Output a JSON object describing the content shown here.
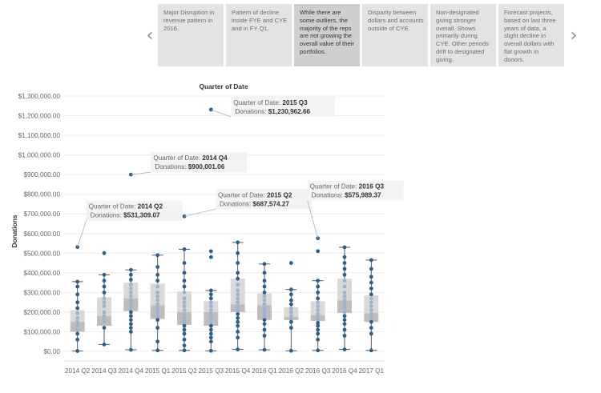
{
  "story": {
    "points": [
      {
        "text": "Major Disruption in revenue pattern in 2016.",
        "active": false
      },
      {
        "text": "Pattern of decline inside FYE and CYE and in FY Q1.",
        "active": false
      },
      {
        "text": "While there are some outliers, the majority of the reps are not growing the overall value of their portfolios.",
        "active": true
      },
      {
        "text": "Disparity between dollars and accounts outside of CYE.",
        "active": false
      },
      {
        "text": "Non-designated giving stronger overall. Shows primarily during CYE. Other periods drift to designated giving.",
        "active": false
      },
      {
        "text": "Forecast projects, based on last three years of data, a slight decline in overall dollars with flat growth in donors.",
        "active": false
      }
    ],
    "prev_icon": "chevron-left-icon",
    "next_icon": "chevron-right-icon"
  },
  "chart_data": {
    "type": "boxplot",
    "title": "Quarter of Date",
    "ylabel": "Donations",
    "ylim": [
      0,
      1300000
    ],
    "yticks": [
      "$0.00",
      "$100,000.00",
      "$200,000.00",
      "$300,000.00",
      "$400,000.00",
      "$500,000.00",
      "$600,000.00",
      "$700,000.00",
      "$800,000.00",
      "$900,000.00",
      "$1,000,000.00",
      "$1,100,000.00",
      "$1,200,000.00",
      "$1,300,000.00"
    ],
    "categories": [
      "2014 Q2",
      "2014 Q3",
      "2014 Q4",
      "2015 Q1",
      "2015 Q2",
      "2015 Q3",
      "2015 Q4",
      "2016 Q1",
      "2016 Q2",
      "2016 Q3",
      "2016 Q4",
      "2017 Q1"
    ],
    "boxes": [
      {
        "min": 2000,
        "q1": 100000,
        "median": 150000,
        "q3": 210000,
        "max": 355000
      },
      {
        "min": 35000,
        "q1": 130000,
        "median": 180000,
        "q3": 275000,
        "max": 390000
      },
      {
        "min": 8000,
        "q1": 205000,
        "median": 270000,
        "q3": 350000,
        "max": 415000
      },
      {
        "min": 5000,
        "q1": 165000,
        "median": 235000,
        "q3": 345000,
        "max": 490000
      },
      {
        "min": 5000,
        "q1": 135000,
        "median": 200000,
        "q3": 305000,
        "max": 520000
      },
      {
        "min": 3000,
        "q1": 130000,
        "median": 200000,
        "q3": 255000,
        "max": 310000
      },
      {
        "min": 10000,
        "q1": 200000,
        "median": 240000,
        "q3": 370000,
        "max": 555000
      },
      {
        "min": 8000,
        "q1": 160000,
        "median": 235000,
        "q3": 295000,
        "max": 445000
      },
      {
        "min": 3000,
        "q1": 160000,
        "median": 175000,
        "q3": 225000,
        "max": 315000
      },
      {
        "min": 5000,
        "q1": 155000,
        "median": 185000,
        "q3": 255000,
        "max": 360000
      },
      {
        "min": 10000,
        "q1": 195000,
        "median": 260000,
        "q3": 370000,
        "max": 530000
      },
      {
        "min": 5000,
        "q1": 150000,
        "median": 195000,
        "q3": 285000,
        "max": 465000
      }
    ],
    "points": [
      [
        531309.07,
        355000,
        330000,
        290000,
        250000,
        220000,
        195000,
        170000,
        150000,
        130000,
        110000,
        90000,
        60000,
        2000
      ],
      [
        500000,
        390000,
        360000,
        330000,
        300000,
        270000,
        250000,
        230000,
        200000,
        180000,
        165000,
        150000,
        120000,
        35000
      ],
      [
        900001.06,
        415000,
        390000,
        365000,
        340000,
        320000,
        300000,
        280000,
        260000,
        240000,
        220000,
        200000,
        180000,
        160000,
        140000,
        120000,
        100000,
        8000
      ],
      [
        490000,
        430000,
        390000,
        360000,
        330000,
        300000,
        280000,
        260000,
        240000,
        220000,
        200000,
        180000,
        160000,
        120000,
        50000,
        5000
      ],
      [
        687574.27,
        520000,
        450000,
        400000,
        360000,
        330000,
        300000,
        270000,
        250000,
        230000,
        210000,
        190000,
        170000,
        150000,
        130000,
        110000,
        90000,
        60000,
        30000,
        5000
      ],
      [
        1230962.66,
        510000,
        480000,
        310000,
        290000,
        270000,
        250000,
        230000,
        210000,
        190000,
        170000,
        150000,
        130000,
        110000,
        90000,
        70000,
        50000,
        3000
      ],
      [
        555000,
        500000,
        450000,
        400000,
        370000,
        340000,
        310000,
        290000,
        270000,
        250000,
        230000,
        210000,
        190000,
        170000,
        150000,
        130000,
        100000,
        70000,
        10000
      ],
      [
        445000,
        400000,
        360000,
        330000,
        300000,
        280000,
        260000,
        240000,
        220000,
        200000,
        180000,
        160000,
        140000,
        110000,
        80000,
        8000
      ],
      [
        450000,
        315000,
        290000,
        260000,
        240000,
        220000,
        200000,
        180000,
        165000,
        150000,
        120000,
        3000
      ],
      [
        575989.37,
        510000,
        360000,
        330000,
        300000,
        270000,
        250000,
        230000,
        210000,
        190000,
        175000,
        160000,
        145000,
        130000,
        110000,
        90000,
        60000,
        5000
      ],
      [
        530000,
        480000,
        450000,
        420000,
        390000,
        360000,
        330000,
        300000,
        280000,
        260000,
        240000,
        220000,
        200000,
        180000,
        160000,
        140000,
        110000,
        80000,
        10000
      ],
      [
        465000,
        420000,
        380000,
        350000,
        320000,
        290000,
        270000,
        250000,
        230000,
        210000,
        190000,
        170000,
        150000,
        120000,
        90000,
        5000
      ]
    ],
    "annotations": [
      {
        "category": "2015 Q3",
        "value": 1230962.66,
        "label": "Quarter of Date: ",
        "quarter": "2015 Q3",
        "donations_label": "Donations: ",
        "donations": "$1,230,962.66"
      },
      {
        "category": "2014 Q4",
        "value": 900001.06,
        "label": "Quarter of Date: ",
        "quarter": "2014 Q4",
        "donations_label": "Donations: ",
        "donations": "$900,001.06"
      },
      {
        "category": "2015 Q2",
        "value": 687574.27,
        "label": "Quarter of Date: ",
        "quarter": "2015 Q2",
        "donations_label": "Donations: ",
        "donations": "$687,574.27"
      },
      {
        "category": "2014 Q2",
        "value": 531309.07,
        "label": "Quarter of Date: ",
        "quarter": "2014 Q2",
        "donations_label": "Donations: ",
        "donations": "$531,309.07"
      },
      {
        "category": "2016 Q3",
        "value": 575989.37,
        "label": "Quarter of Date: ",
        "quarter": "2016 Q3",
        "donations_label": "Donations: ",
        "donations": "$575,989.37"
      }
    ],
    "colors": {
      "dot": "#2e5f8a",
      "dot_inside": "#9fb3cc",
      "box_upper": "#d9d9d9",
      "box_lower": "#bdbdbd",
      "whisker": "#5a5a5a",
      "grid": "#ececec",
      "leader": "#b0b0b0"
    },
    "grid": true
  }
}
